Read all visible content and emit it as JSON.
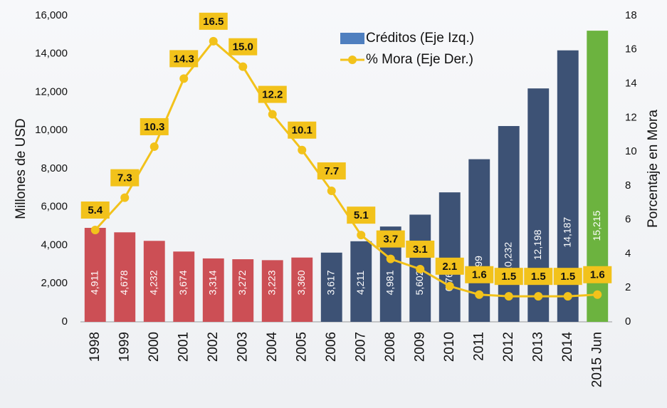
{
  "chart_data": {
    "type": "bar_line",
    "y_label": "Millones de USD",
    "y2_label": "Porcentaje en Mora",
    "categories": [
      "1998",
      "1999",
      "2000",
      "2001",
      "2002",
      "2003",
      "2004",
      "2005",
      "2006",
      "2007",
      "2008",
      "2009",
      "2010",
      "2011",
      "2012",
      "2013",
      "2014",
      "2015 Jun"
    ],
    "series": [
      {
        "name": "Créditos (Eje Izq.)",
        "type": "bar",
        "color": "#4f7fbf",
        "colors": [
          "#cc4f55",
          "#cc4f55",
          "#cc4f55",
          "#cc4f55",
          "#cc4f55",
          "#cc4f55",
          "#cc4f55",
          "#cc4f55",
          "#3d5275",
          "#3d5275",
          "#3d5275",
          "#3d5275",
          "#3d5275",
          "#3d5275",
          "#3d5275",
          "#3d5275",
          "#3d5275",
          "#6cb33f"
        ],
        "values": [
          4911,
          4678,
          4232,
          3674,
          3314,
          3272,
          3223,
          3360,
          3617,
          4211,
          4981,
          5602,
          6767,
          8499,
          10232,
          12198,
          14187,
          15215
        ],
        "value_labels": [
          "4,911",
          "4,678",
          "4,232",
          "3,674",
          "3,314",
          "3,272",
          "3,223",
          "3,360",
          "3,617",
          "4,211",
          "4,981",
          "5,602",
          "6,767",
          "8,499",
          "10,232",
          "12,198",
          "14,187",
          "15,215"
        ]
      },
      {
        "name": "% Mora (Eje Der.)",
        "type": "line",
        "axis": "y2",
        "color": "#f2c21b",
        "values": [
          5.4,
          7.3,
          10.3,
          14.3,
          16.5,
          15.0,
          12.2,
          10.1,
          7.7,
          5.1,
          3.7,
          3.1,
          2.1,
          1.6,
          1.5,
          1.5,
          1.5,
          1.6
        ],
        "value_labels": [
          "5.4",
          "7.3",
          "10.3",
          "14.3",
          "16.5",
          "15.0",
          "12.2",
          "10.1",
          "7.7",
          "5.1",
          "3.7",
          "3.1",
          "2.1",
          "1.6",
          "1.5",
          "1.5",
          "1.5",
          "1.6"
        ]
      }
    ],
    "ylim": [
      0,
      16000
    ],
    "yticks": [
      0,
      {
        "value": 2000,
        "label": "2,000"
      },
      {
        "value": 4000,
        "label": "4,000"
      },
      {
        "value": 6000,
        "label": "6,000"
      },
      {
        "value": 8000,
        "label": "8,000"
      },
      {
        "value": 10000,
        "label": "10,000"
      },
      {
        "value": 12000,
        "label": "12,000"
      },
      {
        "value": 14000,
        "label": "14,000"
      },
      {
        "value": 16000,
        "label": "16,000"
      }
    ],
    "y2lim": [
      0,
      18
    ],
    "y2ticks": [
      0,
      2,
      4,
      6,
      8,
      10,
      12,
      14,
      16,
      18
    ],
    "legend": "top-right"
  }
}
